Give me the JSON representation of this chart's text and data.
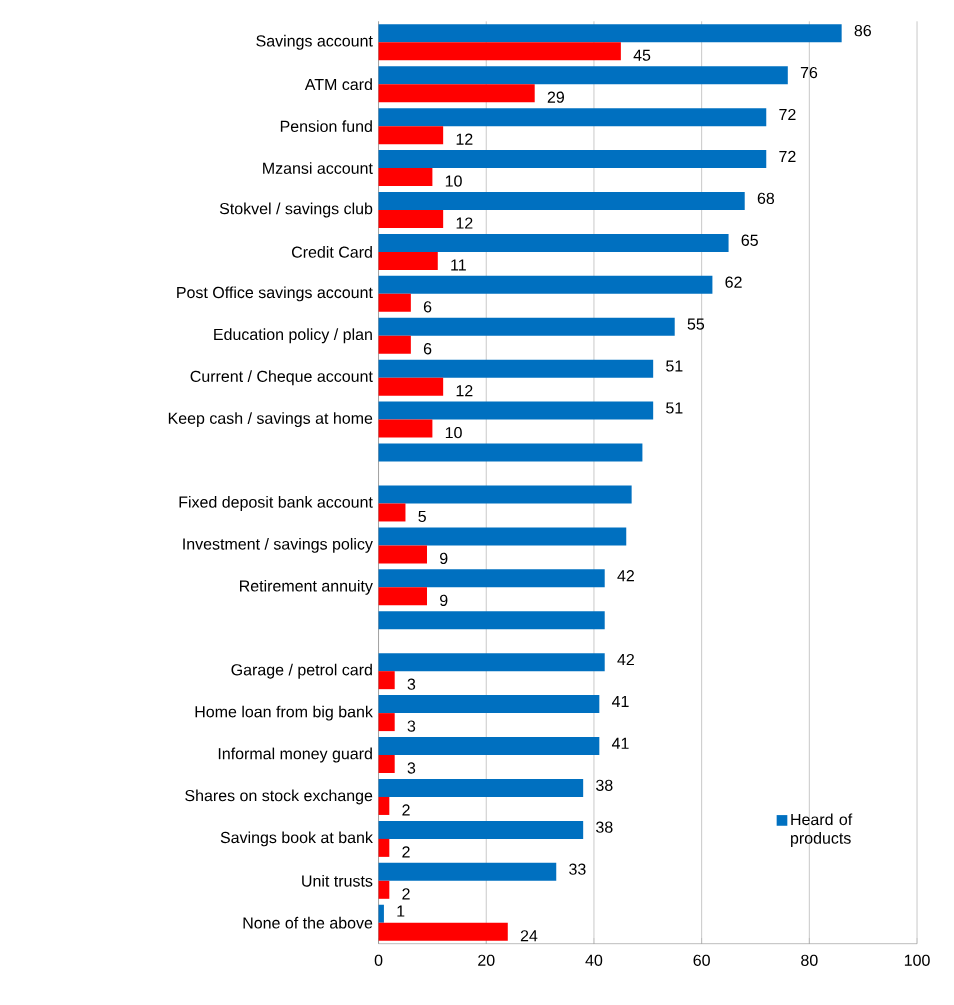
{
  "chart_data": {
    "type": "bar",
    "orientation": "horizontal",
    "categories": [
      "Savings account",
      "ATM card",
      "Pension fund",
      "Mzansi account",
      "Stokvel / savings club",
      "Credit Card",
      "Post Office savings account",
      "Education policy / plan",
      "Current / Cheque account",
      "Keep cash / savings at home",
      null,
      "Fixed deposit bank account",
      "Investment / savings policy",
      "Retirement annuity",
      null,
      "Garage / petrol card",
      "Home loan from big bank",
      "Informal money guard",
      "Shares on stock exchange",
      "Savings book at bank",
      "Unit trusts",
      "None of the above"
    ],
    "series": [
      {
        "name": "Heard of products",
        "color": "#0070c0",
        "values": [
          86,
          76,
          72,
          72,
          68,
          65,
          62,
          55,
          51,
          51,
          49,
          47,
          46,
          42,
          42,
          42,
          41,
          41,
          38,
          38,
          33,
          1
        ],
        "value_labels": [
          "86",
          "76",
          "72",
          "72",
          "68",
          "65",
          "62",
          "55",
          "51",
          "51",
          null,
          null,
          null,
          "42",
          null,
          "42",
          "41",
          "41",
          "38",
          "38",
          "33",
          "1"
        ]
      },
      {
        "color": "#ff0000",
        "values": [
          45,
          29,
          12,
          10,
          12,
          11,
          6,
          6,
          12,
          10,
          null,
          5,
          9,
          9,
          null,
          3,
          3,
          3,
          2,
          2,
          2,
          24
        ],
        "value_labels": [
          "45",
          "29",
          "12",
          "10",
          "12",
          "11",
          "6",
          "6",
          "12",
          "10",
          null,
          "5",
          "9",
          "9",
          null,
          "3",
          "3",
          "3",
          "2",
          "2",
          "2",
          "24"
        ]
      }
    ],
    "xlim": [
      0,
      100
    ],
    "xticks": [
      0,
      20,
      40,
      60,
      80,
      100
    ],
    "grid": "x",
    "legend": "bottom right"
  }
}
